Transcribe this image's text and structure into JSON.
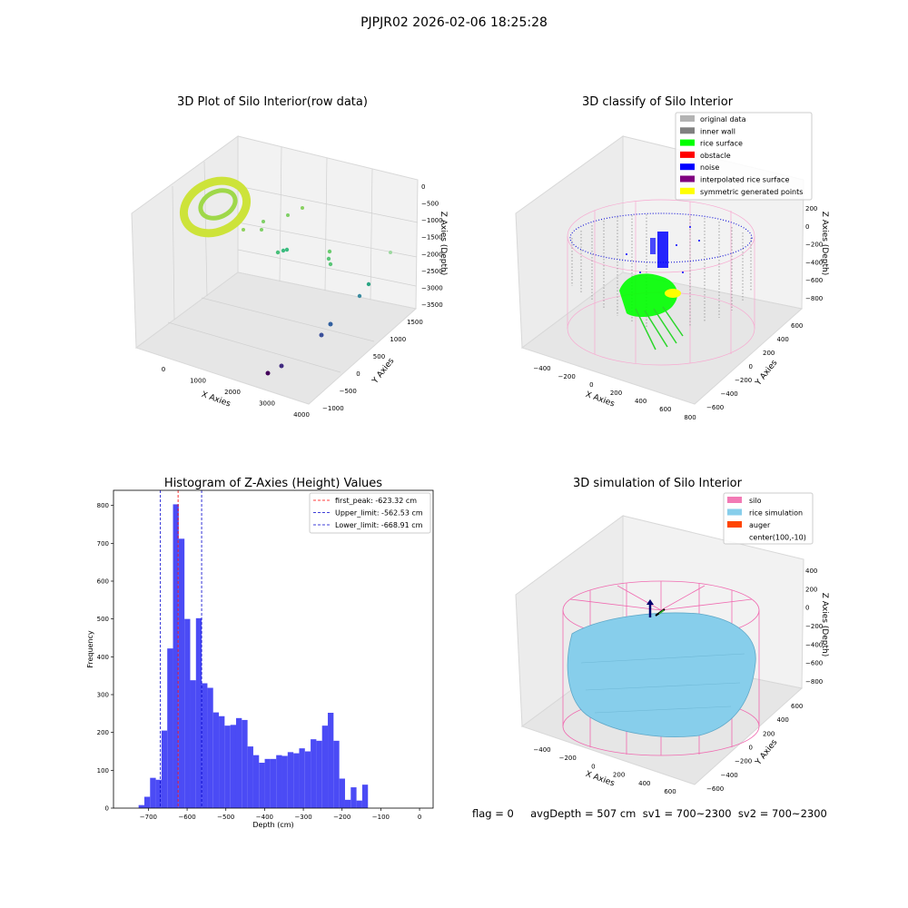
{
  "figure_title": "PJPJR02 2026-02-06 18:25:28",
  "status_text": "flag = 0     avgDepth = 507 cm  sv1 = 700~2300  sv2 = 700~2300",
  "colors": {
    "histogram_bar": "#4b4bf5",
    "first_peak_line": "#ff0000",
    "limit_lines": "#0000cc",
    "silo_pink": "#f27ab5",
    "rice_surface": "#00ff00",
    "obstacle": "#ff0000",
    "noise": "#0000ff",
    "interpolated": "#800080",
    "symmetric": "#ffff00",
    "original": "#b3b3b3",
    "inner_wall": "#808080",
    "rice_sim": "#87ceeb",
    "auger": "#ff4500"
  },
  "chart_data": [
    {
      "type": "scatter",
      "title": "3D Plot of Silo Interior(row data)",
      "xlabel": "X Axies",
      "ylabel": "Y Axies",
      "zlabel": "Z Axies (Depth)",
      "x_ticks": [
        "0",
        "1000",
        "2000",
        "3000",
        "4000"
      ],
      "y_ticks": [
        "−1000",
        "−500",
        "0",
        "500",
        "1000",
        "1500"
      ],
      "z_ticks": [
        "0",
        "−500",
        "−1000",
        "−1500",
        "−2000",
        "−2500",
        "−3000",
        "−3500"
      ]
    },
    {
      "type": "scatter",
      "title": "3D classify of Silo Interior",
      "xlabel": "X Axies",
      "ylabel": "Y Axies",
      "zlabel": "Z Axies (Depth)",
      "x_ticks": [
        "−400",
        "−200",
        "0",
        "200",
        "400",
        "600",
        "800"
      ],
      "y_ticks": [
        "−600",
        "−400",
        "−200",
        "0",
        "200",
        "400",
        "600"
      ],
      "z_ticks": [
        "200",
        "0",
        "−200",
        "−400",
        "−600",
        "−800"
      ],
      "legend": [
        "original data",
        "inner wall",
        "rice surface",
        "obstacle",
        "noise",
        "interpolated rice surface",
        "symmetric generated points"
      ],
      "legend_position": "top-right"
    },
    {
      "type": "bar",
      "title": "Histogram of Z-Axies (Height) Values",
      "xlabel": "Depth (cm)",
      "ylabel": "Frequency",
      "bin_start": -740,
      "bin_width": 14.8,
      "values": [
        0,
        8,
        30,
        80,
        75,
        205,
        422,
        803,
        712,
        500,
        338,
        502,
        330,
        318,
        253,
        243,
        218,
        220,
        238,
        233,
        163,
        140,
        120,
        130,
        130,
        140,
        138,
        148,
        145,
        158,
        150,
        182,
        178,
        218,
        252,
        178,
        78,
        22,
        55,
        20,
        62
      ],
      "xlim": [
        -790,
        35
      ],
      "ylim": [
        0,
        840
      ],
      "x_ticks": [
        -700,
        -600,
        -500,
        -400,
        -300,
        -200,
        -100,
        0
      ],
      "y_ticks": [
        0,
        100,
        200,
        300,
        400,
        500,
        600,
        700,
        800
      ],
      "vlines": [
        {
          "label": "first_peak: -623.32 cm",
          "x": -623.32
        },
        {
          "label": "Upper_limit: -562.53 cm",
          "x": -562.53
        },
        {
          "label": "Lower_limit: -668.91 cm",
          "x": -668.91
        }
      ],
      "legend_position": "top-right"
    },
    {
      "type": "scatter",
      "title": "3D simulation of Silo Interior",
      "xlabel": "X Axies",
      "ylabel": "Y Axies",
      "zlabel": "Z Axies (Depth)",
      "x_ticks": [
        "−400",
        "−200",
        "0",
        "200",
        "400",
        "600"
      ],
      "y_ticks": [
        "−600",
        "−400",
        "−200",
        "0",
        "200",
        "400",
        "600"
      ],
      "z_ticks": [
        "400",
        "200",
        "0",
        "−200",
        "−400",
        "−600",
        "−800"
      ],
      "legend": [
        "silo",
        "rice simulation",
        "auger",
        "center(100,-10)"
      ],
      "legend_position": "top-right"
    }
  ]
}
